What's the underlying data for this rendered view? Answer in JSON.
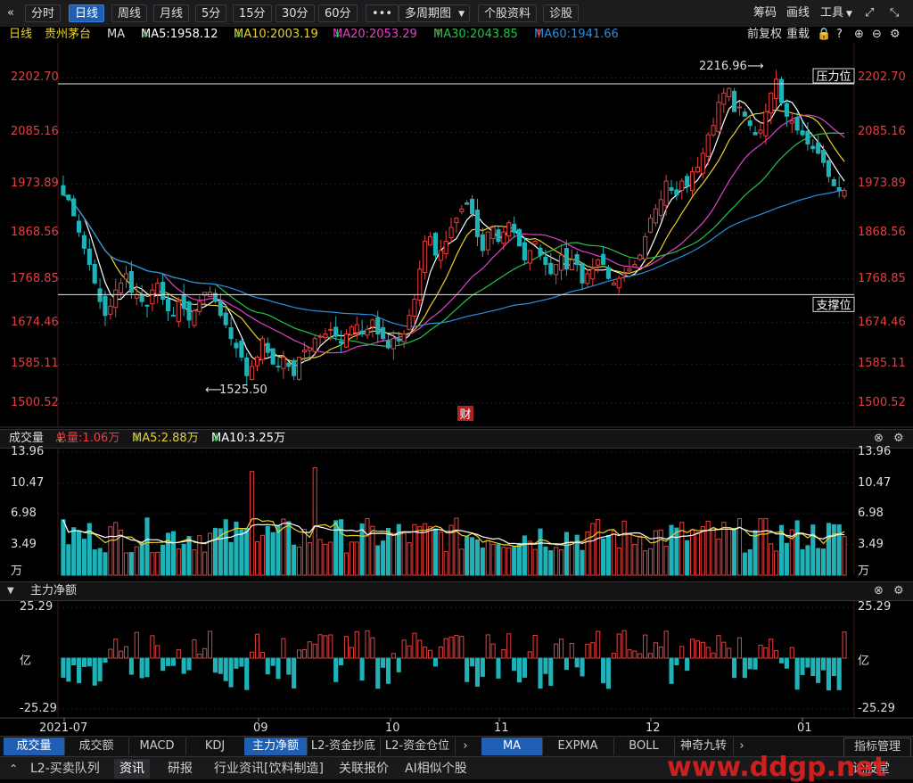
{
  "toolbar": {
    "back_icon": "«",
    "periods": [
      "分时",
      "日线",
      "周线",
      "月线",
      "5分",
      "15分",
      "30分",
      "60分"
    ],
    "active_period": "日线",
    "more": "•••",
    "multi_period": "多周期图",
    "stock_info": "个股资料",
    "diagnose": "诊股",
    "right": {
      "chips": "筹码",
      "draw": "画线",
      "tools": "工具"
    }
  },
  "ma_bar": {
    "period": "日线",
    "stock": "贵州茅台",
    "indicator": "MA",
    "ma5": "MA5:1958.12",
    "ma10": "MA10:2003.19",
    "ma20": "MA20:2053.29",
    "ma30": "MA30:2043.85",
    "ma60": "MA60:1941.66",
    "adjust": "前复权",
    "reload": "重载"
  },
  "colors": {
    "up": "#e8403f",
    "down": "#1fb3b8",
    "ma5": "#ffffff",
    "ma10": "#e8d22a",
    "ma20": "#e043c8",
    "ma30": "#27c24c",
    "ma60": "#2a8fe0",
    "axis": "#e04040"
  },
  "price_axis": {
    "ticks": [
      "2202.70",
      "2085.16",
      "1973.89",
      "1868.56",
      "1768.85",
      "1674.46",
      "1585.11",
      "1500.52"
    ]
  },
  "annotations": {
    "high": "2216.96",
    "low": "1525.50",
    "resistance": "压力位",
    "support": "支撑位",
    "finance_marker": "财"
  },
  "volume_panel": {
    "title": "成交量",
    "total": "总量:1.06万",
    "ma5": "MA5:2.88万",
    "ma10": "MA10:3.25万",
    "ticks": [
      "13.96",
      "10.47",
      "6.98",
      "3.49",
      "万"
    ]
  },
  "flow_panel": {
    "title": "主力净额",
    "ticks": [
      "25.29",
      "亿",
      "-25.29"
    ]
  },
  "date_axis": [
    "2021-07",
    "09",
    "10",
    "11",
    "12",
    "01"
  ],
  "bottom_tabs": [
    "成交量",
    "成交额",
    "MACD",
    "KDJ",
    "主力净额",
    "L2-资金抄底",
    "L2-资金仓位"
  ],
  "bottom_tabs_active": [
    "成交量",
    "主力净额"
  ],
  "indicator_tabs": [
    "MA",
    "EXPMA",
    "BOLL",
    "神奇九转"
  ],
  "indicator_manage": "指标管理",
  "info_tabs": [
    "L2-买卖队列",
    "资讯",
    "研报",
    "行业资讯[饮料制造]",
    "关联报价",
    "AI相似个股",
    "论股堂"
  ],
  "info_tabs_active": "资讯",
  "watermark": "www.ddgp.net",
  "chart_data": {
    "type": "candlestick",
    "title": "贵州茅台 日线",
    "price_range": [
      1470,
      2240
    ],
    "levels": {
      "resistance": 2190,
      "support": 1735
    },
    "candles_close": [
      1950,
      1940,
      1905,
      1870,
      1835,
      1800,
      1760,
      1720,
      1690,
      1710,
      1745,
      1760,
      1780,
      1740,
      1735,
      1720,
      1710,
      1745,
      1760,
      1725,
      1700,
      1690,
      1720,
      1705,
      1680,
      1700,
      1720,
      1740,
      1740,
      1720,
      1690,
      1670,
      1640,
      1620,
      1600,
      1560,
      1580,
      1600,
      1640,
      1610,
      1585,
      1580,
      1600,
      1580,
      1560,
      1600,
      1615,
      1620,
      1640,
      1645,
      1650,
      1660,
      1645,
      1630,
      1650,
      1665,
      1670,
      1650,
      1660,
      1680,
      1650,
      1640,
      1620,
      1640,
      1635,
      1650,
      1690,
      1725,
      1790,
      1850,
      1860,
      1820,
      1830,
      1850,
      1880,
      1900,
      1920,
      1930,
      1910,
      1860,
      1830,
      1870,
      1880,
      1850,
      1870,
      1890,
      1870,
      1840,
      1810,
      1830,
      1850,
      1820,
      1800,
      1780,
      1800,
      1820,
      1790,
      1810,
      1800,
      1760,
      1780,
      1790,
      1810,
      1800,
      1770,
      1760,
      1770,
      1780,
      1790,
      1800,
      1820,
      1860,
      1900,
      1920,
      1940,
      1980,
      1960,
      1950,
      1980,
      1970,
      2000,
      2010,
      2040,
      2080,
      2100,
      2150,
      2170,
      2180,
      2130,
      2140,
      2120,
      2100,
      2080,
      2090,
      2130,
      2170,
      2200,
      2150,
      2120,
      2110,
      2090,
      2080,
      2060,
      2050,
      2040,
      2020,
      1990,
      1970,
      1960,
      1960
    ],
    "ma60_hint": "MA60 rises from ~1780 to ~1941",
    "volume_unit": "万",
    "volume_range": [
      0,
      13.96
    ],
    "flow_unit": "亿",
    "flow_range": [
      -25.29,
      25.29
    ]
  }
}
